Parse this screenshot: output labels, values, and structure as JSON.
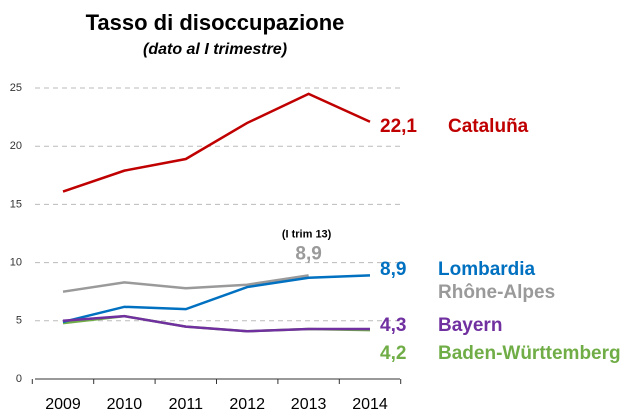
{
  "chart_data": {
    "type": "line",
    "title": "Tasso di disoccupazione",
    "subtitle": "(dato al I trimestre)",
    "annotation": "(I trim 13)",
    "categories": [
      "2009",
      "2010",
      "2011",
      "2012",
      "2013",
      "2014"
    ],
    "series": [
      {
        "name": "Cataluña",
        "color": "#c00000",
        "values": [
          16.1,
          17.9,
          18.9,
          22.0,
          24.5,
          22.1
        ],
        "value_labels": [
          null,
          null,
          null,
          null,
          null,
          "22,1"
        ]
      },
      {
        "name": "Lombardia",
        "color": "#0070c0",
        "values": [
          4.9,
          6.2,
          6.0,
          7.9,
          8.7,
          8.9
        ],
        "value_labels": [
          null,
          null,
          null,
          null,
          null,
          "8,9"
        ]
      },
      {
        "name": "Rhône-Alpes",
        "color": "#9a9a9a",
        "values": [
          7.5,
          8.3,
          7.8,
          8.1,
          8.9,
          null
        ],
        "value_labels": [
          null,
          null,
          null,
          null,
          "8,9",
          null
        ]
      },
      {
        "name": "Bayern",
        "color": "#7030a0",
        "values": [
          5.0,
          5.4,
          4.5,
          4.1,
          4.3,
          4.3
        ],
        "value_labels": [
          null,
          null,
          null,
          null,
          null,
          "4,3"
        ]
      },
      {
        "name": "Baden-Württemberg",
        "color": "#70ad47",
        "values": [
          4.8,
          5.4,
          4.5,
          4.1,
          4.3,
          4.2
        ],
        "value_labels": [
          null,
          null,
          null,
          null,
          null,
          "4,2"
        ]
      }
    ],
    "ylim": [
      0,
      25
    ],
    "yticks": [
      0,
      5,
      10,
      15,
      20,
      25
    ],
    "grid": true
  }
}
